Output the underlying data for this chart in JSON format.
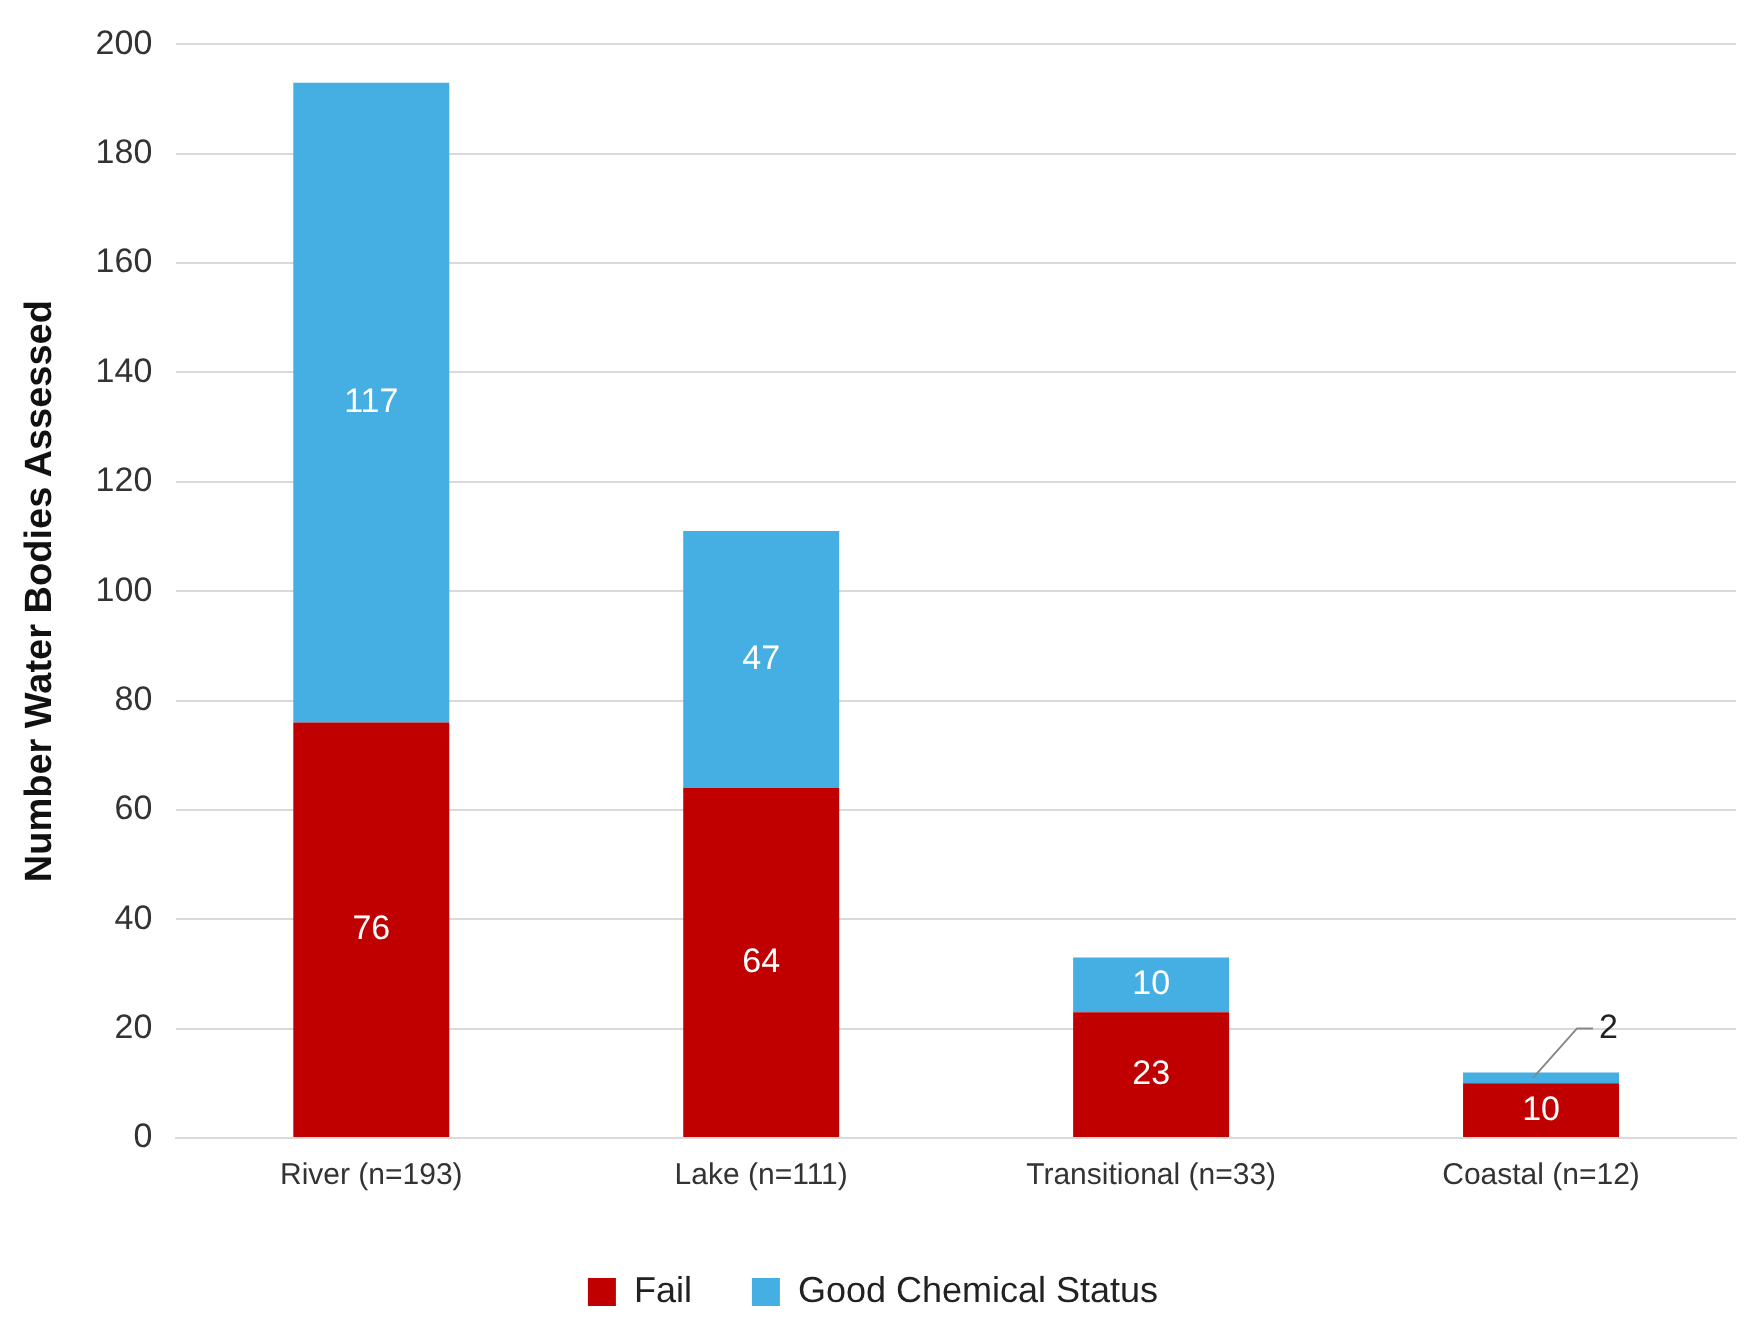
{
  "chart_data": {
    "type": "bar",
    "stacked": true,
    "ylabel": "Number Water Bodies Assessed",
    "categories": [
      "River (n=193)",
      "Lake (n=111)",
      "Transitional (n=33)",
      "Coastal (n=12)"
    ],
    "series": [
      {
        "name": "Fail",
        "color": "#c00000",
        "values": [
          76,
          64,
          23,
          10
        ]
      },
      {
        "name": "Good Chemical Status",
        "color": "#45aee3",
        "values": [
          117,
          47,
          10,
          2
        ]
      }
    ],
    "ylim": [
      0,
      200
    ],
    "yticks": [
      0,
      20,
      40,
      60,
      80,
      100,
      120,
      140,
      160,
      180,
      200
    ],
    "grid": "y",
    "legend": "bottom",
    "data_labels": true
  }
}
